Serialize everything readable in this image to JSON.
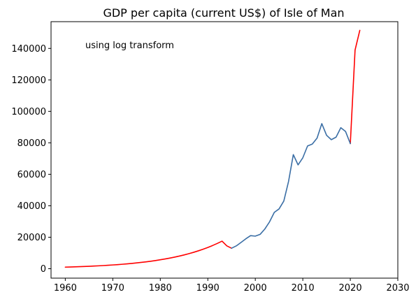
{
  "chart_data": {
    "type": "line",
    "title": "GDP per capita (current US$) of Isle of Man",
    "annotation": "using log transform",
    "xlabel": "",
    "ylabel": "",
    "xlim": [
      1957,
      2030
    ],
    "ylim": [
      -6000,
      157000
    ],
    "xticks": [
      1960,
      1970,
      1980,
      1990,
      2000,
      2010,
      2020,
      2030
    ],
    "yticks": [
      0,
      20000,
      40000,
      60000,
      80000,
      100000,
      120000,
      140000
    ],
    "grid": false,
    "series": [
      {
        "color": "#ff0000",
        "x": [
          1960,
          1961,
          1962,
          1963,
          1964,
          1965,
          1966,
          1967,
          1968,
          1969,
          1970,
          1971,
          1972,
          1973,
          1974,
          1975,
          1976,
          1977,
          1978,
          1979,
          1980,
          1981,
          1982,
          1983,
          1984,
          1985,
          1986,
          1987,
          1988,
          1989,
          1990,
          1991,
          1992,
          1993,
          1994,
          1995
        ],
        "y": [
          1000,
          1090,
          1190,
          1300,
          1410,
          1540,
          1680,
          1830,
          2000,
          2180,
          2380,
          2590,
          2830,
          3080,
          3360,
          3670,
          4000,
          4370,
          4760,
          5200,
          5670,
          6180,
          6740,
          7350,
          8020,
          8750,
          9540,
          10400,
          11350,
          12380,
          13500,
          14730,
          16060,
          17520,
          14500,
          13000
        ]
      },
      {
        "color": "#ff0000",
        "x": [
          2020,
          2021,
          2022
        ],
        "y": [
          79500,
          139000,
          151500
        ]
      },
      {
        "color": "#3a6ea5",
        "x": [
          1995,
          1996,
          1997,
          1998,
          1999,
          2000,
          2001,
          2002,
          2003,
          2004,
          2005,
          2006,
          2007,
          2008,
          2009,
          2010,
          2011,
          2012,
          2013,
          2014,
          2015,
          2016,
          2017,
          2018,
          2019,
          2020
        ],
        "y": [
          13000,
          14500,
          16700,
          19000,
          21000,
          20700,
          21800,
          25200,
          29800,
          35800,
          38000,
          43000,
          55500,
          72500,
          66000,
          70500,
          78000,
          79200,
          83000,
          92200,
          84800,
          82000,
          83600,
          89600,
          87200,
          79500
        ]
      }
    ]
  }
}
